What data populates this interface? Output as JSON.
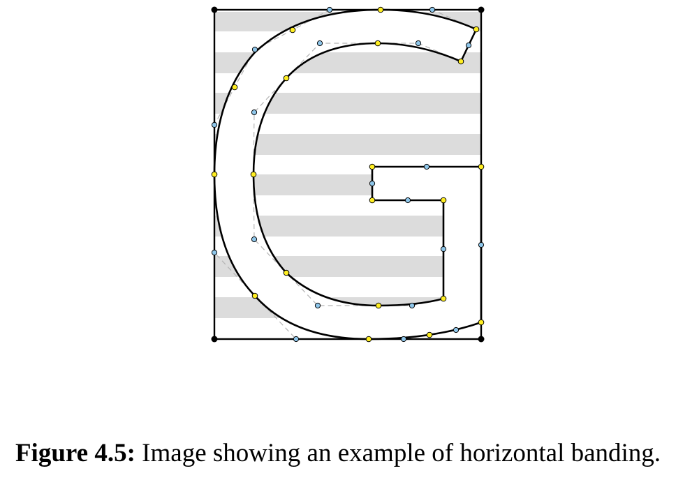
{
  "caption": {
    "label": "Figure 4.5:",
    "text": "Image showing an example of horizontal banding."
  },
  "colors": {
    "band": "#dcdcdc",
    "outline": "#000000",
    "control_polygon": "#b4b4b4",
    "on_curve_point": "#ffee22",
    "off_curve_point": "#8ec6ea",
    "corner_point": "#000000"
  }
}
